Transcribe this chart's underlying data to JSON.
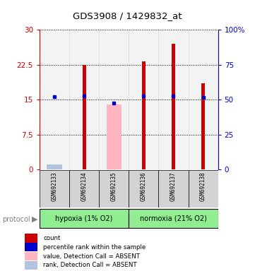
{
  "title": "GDS3908 / 1429832_at",
  "samples": [
    "GSM692133",
    "GSM692134",
    "GSM692135",
    "GSM692136",
    "GSM692137",
    "GSM692138"
  ],
  "groups": [
    "hypoxia (1% O2)",
    "normoxia (21% O2)"
  ],
  "group_colors": [
    "#90ee90",
    "#90ee90"
  ],
  "count_values": [
    0.3,
    22.5,
    0.2,
    23.2,
    27.0,
    18.5
  ],
  "rank_values_pct": [
    52.0,
    52.5,
    47.5,
    52.5,
    52.5,
    51.5
  ],
  "absent_value_bar": [
    0.0,
    0.0,
    14.0,
    0.0,
    0.0,
    0.0
  ],
  "absent_rank_bar_pct": [
    3.5,
    0.0,
    0.0,
    0.0,
    0.0,
    0.0
  ],
  "count_color": "#cc0000",
  "rank_color": "#0000cc",
  "absent_value_color": "#ffb6c1",
  "absent_rank_color": "#b0c4de",
  "ylim_left": [
    0,
    30
  ],
  "ylim_right": [
    0,
    100
  ],
  "yticks_left": [
    0,
    7.5,
    15,
    22.5,
    30
  ],
  "yticks_right": [
    0,
    25,
    50,
    75,
    100
  ],
  "ytick_labels_left": [
    "0",
    "7.5",
    "15",
    "22.5",
    "30"
  ],
  "ytick_labels_right": [
    "0",
    "25",
    "50",
    "75",
    "100%"
  ],
  "left_axis_color": "#cc0000",
  "right_axis_color": "#0000cc",
  "legend_items": [
    {
      "label": "count",
      "color": "#cc0000"
    },
    {
      "label": "percentile rank within the sample",
      "color": "#0000cc"
    },
    {
      "label": "value, Detection Call = ABSENT",
      "color": "#ffb6c1"
    },
    {
      "label": "rank, Detection Call = ABSENT",
      "color": "#b0c4de"
    }
  ],
  "protocol_label": "protocol",
  "header_bg": "#d3d3d3",
  "bar_bg": "#d3d3d3",
  "count_bar_width": 0.12,
  "absent_bar_width": 0.5
}
